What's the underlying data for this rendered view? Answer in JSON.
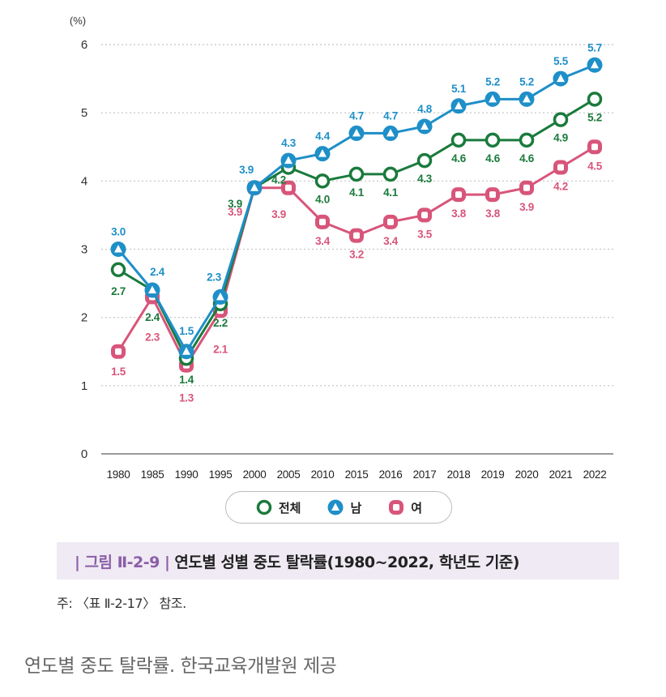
{
  "chart_data": {
    "type": "line",
    "unit_label": "(%)",
    "categories": [
      "1980",
      "1985",
      "1990",
      "1995",
      "2000",
      "2005",
      "2010",
      "2015",
      "2016",
      "2017",
      "2018",
      "2019",
      "2020",
      "2021",
      "2022"
    ],
    "ylim": [
      0,
      6
    ],
    "yticks": [
      "0",
      "1",
      "2",
      "3",
      "4",
      "5",
      "6"
    ],
    "grid": "horizontal dotted",
    "legend_position": "bottom-center",
    "series": [
      {
        "name": "전체",
        "color": "#1a7a3c",
        "marker": "circle",
        "values": [
          2.7,
          2.4,
          1.4,
          2.2,
          3.9,
          4.2,
          4.0,
          4.1,
          4.1,
          4.3,
          4.6,
          4.6,
          4.6,
          4.9,
          5.2
        ],
        "labels": [
          "2.7",
          "2.4",
          "1.4",
          "2.2",
          "3.9",
          "4.2",
          "4.0",
          "4.1",
          "4.1",
          "4.3",
          "4.6",
          "4.6",
          "4.6",
          "4.9",
          "5.2"
        ]
      },
      {
        "name": "남",
        "color": "#1e8fc8",
        "marker": "triangle",
        "values": [
          3.0,
          2.4,
          1.5,
          2.3,
          3.9,
          4.3,
          4.4,
          4.7,
          4.7,
          4.8,
          5.1,
          5.2,
          5.2,
          5.5,
          5.7
        ],
        "labels": [
          "3.0",
          "2.4",
          "1.5",
          "2.3",
          "3.9",
          "4.3",
          "4.4",
          "4.7",
          "4.7",
          "4.8",
          "5.1",
          "5.2",
          "5.2",
          "5.5",
          "5.7"
        ]
      },
      {
        "name": "여",
        "color": "#d8557a",
        "marker": "square",
        "values": [
          1.5,
          2.3,
          1.3,
          2.1,
          3.9,
          3.9,
          3.4,
          3.2,
          3.4,
          3.5,
          3.8,
          3.8,
          3.9,
          4.2,
          4.5
        ],
        "labels": [
          "1.5",
          "2.3",
          "1.3",
          "2.1",
          "3.9",
          "3.9",
          "3.4",
          "3.2",
          "3.4",
          "3.5",
          "3.8",
          "3.8",
          "3.9",
          "4.2",
          "4.5"
        ]
      }
    ]
  },
  "legend": {
    "items": [
      {
        "label": "전체"
      },
      {
        "label": "남"
      },
      {
        "label": "여"
      }
    ]
  },
  "caption": {
    "figure_label": "| 그림 Ⅱ-2-9 |",
    "title": "연도별 성별 중도 탈락률(1980~2022, 학년도 기준)"
  },
  "note": "주: 〈표 Ⅱ-2-17〉 참조.",
  "source": "연도별 중도 탈락률. 한국교육개발원 제공"
}
